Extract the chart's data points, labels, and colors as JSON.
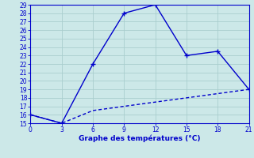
{
  "x": [
    0,
    3,
    6,
    9,
    12,
    15,
    18,
    21
  ],
  "y_solid": [
    16,
    15,
    22,
    28,
    29,
    23,
    23.5,
    19
  ],
  "y_dashed": [
    16,
    15,
    16.5,
    17.0,
    17.5,
    18.0,
    18.5,
    19
  ],
  "line_color": "#0000cc",
  "bg_color": "#cce8e8",
  "grid_color": "#aacece",
  "xlabel": "Graphe des températures (°C)",
  "xlabel_color": "#0000cc",
  "tick_color": "#0000cc",
  "xlim": [
    0,
    21
  ],
  "ylim": [
    15,
    29
  ],
  "xticks": [
    0,
    3,
    6,
    9,
    12,
    15,
    18,
    21
  ],
  "yticks": [
    15,
    16,
    17,
    18,
    19,
    20,
    21,
    22,
    23,
    24,
    25,
    26,
    27,
    28,
    29
  ],
  "marker": "+",
  "marker_size": 4,
  "line_width": 1.0
}
